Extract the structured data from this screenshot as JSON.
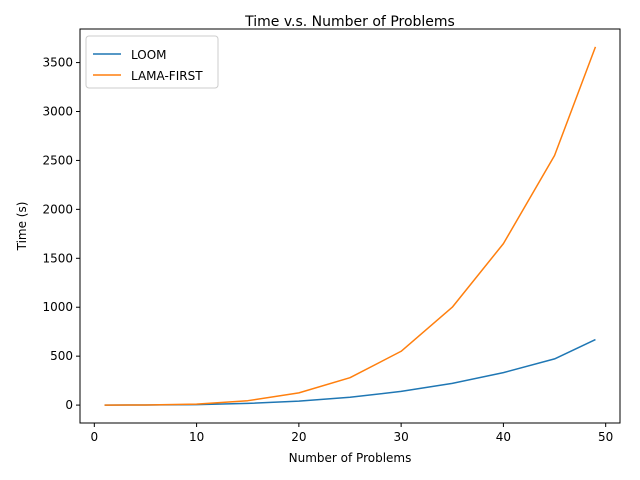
{
  "chart_data": {
    "type": "line",
    "title": "Time v.s. Number of Problems",
    "xlabel": "Number of Problems",
    "ylabel": "Time (s)",
    "xlim": [
      -1.4,
      51.4
    ],
    "ylim": [
      -183,
      3843
    ],
    "xticks": [
      0,
      10,
      20,
      30,
      40,
      50
    ],
    "yticks": [
      0,
      500,
      1000,
      1500,
      2000,
      2500,
      3000,
      3500
    ],
    "grid": false,
    "legend_position": "top-left",
    "x": [
      1,
      5,
      10,
      15,
      20,
      25,
      30,
      35,
      40,
      45,
      49
    ],
    "series": [
      {
        "name": "LOOM",
        "color": "#1f77b4",
        "values": [
          0,
          1,
          5,
          17,
          40,
          80,
          140,
          222,
          332,
          472,
          670
        ]
      },
      {
        "name": "LAMA-FIRST",
        "color": "#ff7f0e",
        "values": [
          0,
          1,
          10,
          45,
          125,
          280,
          550,
          1000,
          1650,
          2550,
          3660
        ]
      }
    ]
  }
}
